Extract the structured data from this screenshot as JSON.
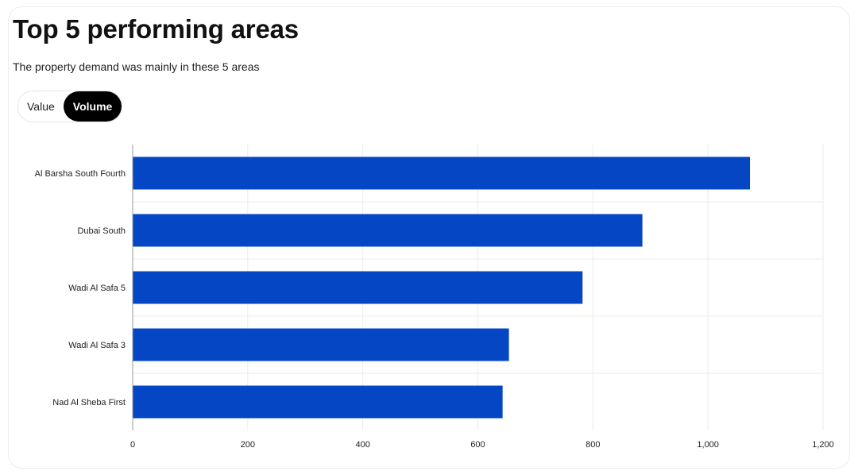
{
  "header": {
    "title": "Top 5 performing areas",
    "subtitle": "The property demand was mainly in these 5 areas"
  },
  "toggle": {
    "options": [
      "Value",
      "Volume"
    ],
    "selected": "Volume"
  },
  "colors": {
    "bar": "#0446c4",
    "grid": "#ebebeb",
    "axis": "#9a9a9a",
    "toggle_active_bg": "#000000"
  },
  "chart_data": {
    "type": "bar",
    "orientation": "horizontal",
    "title": "Top 5 performing areas",
    "xlabel": "",
    "ylabel": "",
    "categories": [
      "Al Barsha South Fourth",
      "Dubai South",
      "Wadi Al Safa 5",
      "Wadi Al Safa 3",
      "Nad Al Sheba First"
    ],
    "series": [
      {
        "name": "Volume",
        "values": [
          1073,
          886,
          782,
          654,
          643
        ]
      }
    ],
    "xlim": [
      0,
      1200
    ],
    "xticks": [
      0,
      200,
      400,
      600,
      800,
      1000,
      1200
    ],
    "xtick_labels": [
      "0",
      "200",
      "400",
      "600",
      "800",
      "1,000",
      "1,200"
    ],
    "grid": true,
    "legend": "none"
  }
}
